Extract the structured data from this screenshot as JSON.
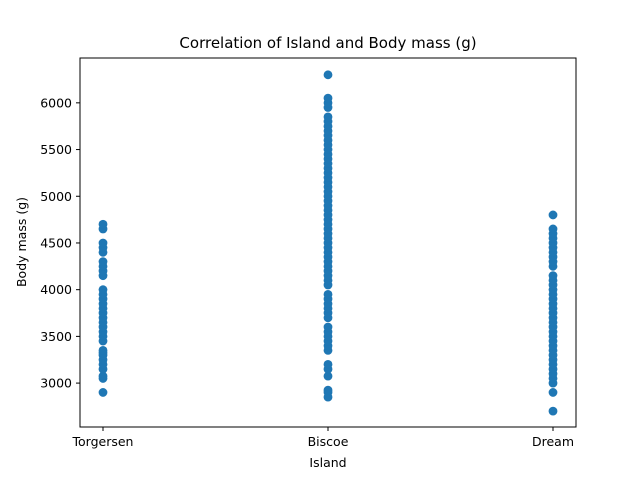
{
  "chart_data": {
    "type": "scatter",
    "title": "Correlation of Island and Body mass (g)",
    "xlabel": "Island",
    "ylabel": "Body mass (g)",
    "categories": [
      "Torgersen",
      "Biscoe",
      "Dream"
    ],
    "ylim": [
      2530,
      6480
    ],
    "yticks": [
      3000,
      3500,
      4000,
      4500,
      5000,
      5500,
      6000
    ],
    "ytick_labels": [
      "3000",
      "3500",
      "4000",
      "4500",
      "5000",
      "5500",
      "6000"
    ],
    "grid": false,
    "legend": "none",
    "color": "#1f77b4",
    "series": [
      {
        "category": "Torgersen",
        "values": [
          2900,
          3050,
          3075,
          3150,
          3200,
          3250,
          3300,
          3325,
          3350,
          3450,
          3500,
          3550,
          3600,
          3650,
          3700,
          3750,
          3800,
          3850,
          3900,
          3950,
          4000,
          4150,
          4200,
          4250,
          4300,
          4400,
          4450,
          4500,
          4650,
          4700
        ]
      },
      {
        "category": "Biscoe",
        "values": [
          2850,
          2900,
          2925,
          3075,
          3150,
          3200,
          3350,
          3400,
          3450,
          3500,
          3550,
          3600,
          3700,
          3750,
          3800,
          3850,
          3900,
          3950,
          4050,
          4100,
          4150,
          4200,
          4250,
          4300,
          4350,
          4400,
          4450,
          4500,
          4550,
          4600,
          4650,
          4700,
          4750,
          4800,
          4850,
          4900,
          4950,
          5000,
          5050,
          5100,
          5150,
          5200,
          5250,
          5300,
          5350,
          5400,
          5450,
          5500,
          5550,
          5600,
          5650,
          5700,
          5750,
          5800,
          5850,
          5950,
          6000,
          6050,
          6300
        ]
      },
      {
        "category": "Dream",
        "values": [
          2700,
          2900,
          3000,
          3050,
          3100,
          3150,
          3200,
          3250,
          3300,
          3350,
          3400,
          3450,
          3500,
          3550,
          3600,
          3650,
          3700,
          3750,
          3800,
          3850,
          3900,
          3950,
          4000,
          4050,
          4100,
          4150,
          4250,
          4300,
          4350,
          4400,
          4450,
          4500,
          4550,
          4600,
          4650,
          4800
        ]
      }
    ]
  }
}
